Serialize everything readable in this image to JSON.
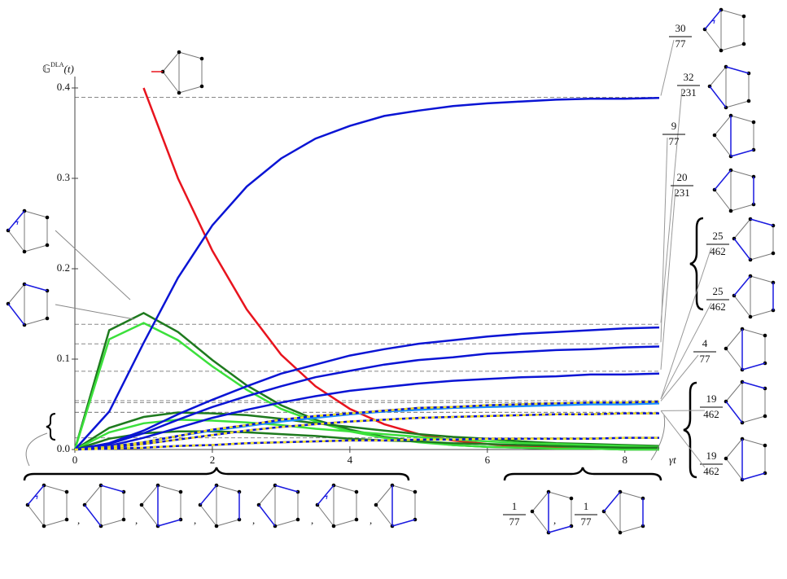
{
  "chart_data": {
    "type": "line",
    "y_label": {
      "base": "𝔾",
      "sup": "DLA",
      "arg": "(t)"
    },
    "x_label": "γt",
    "separator": ",",
    "x": [
      0,
      0.5,
      1,
      1.5,
      2,
      2.5,
      3,
      3.5,
      4,
      4.5,
      5,
      5.5,
      6,
      6.5,
      7,
      7.5,
      8,
      8.5
    ],
    "xlim": [
      0,
      8.5
    ],
    "xticks": [
      0,
      2,
      4,
      6,
      8
    ],
    "ylim": [
      0,
      0.4
    ],
    "yticks": [
      {
        "value": 0,
        "label": "0.0"
      },
      {
        "value": 0.1,
        "label": "0.1"
      },
      {
        "value": 0.2,
        "label": "0.2"
      },
      {
        "value": 0.3,
        "label": "0.3"
      },
      {
        "value": 0.4,
        "label": "0.4"
      }
    ],
    "series": [
      {
        "color": "#e8141e",
        "values": [
          null,
          null,
          0.4,
          0.3,
          0.22,
          0.155,
          0.105,
          0.07,
          0.045,
          0.028,
          0.017,
          0.01,
          0.006,
          0.003,
          0.002,
          0.001,
          0.0005,
          0.0003
        ]
      },
      {
        "color": "#1e7a1e",
        "values": [
          0,
          0.132,
          0.151,
          0.13,
          0.099,
          0.071,
          0.049,
          0.033,
          0.022,
          0.014,
          0.009,
          0.005,
          0.003,
          0.002,
          0.001,
          0.001,
          0,
          0
        ]
      },
      {
        "color": "#3be03b",
        "values": [
          0,
          0.122,
          0.14,
          0.121,
          0.092,
          0.066,
          0.045,
          0.031,
          0.02,
          0.013,
          0.008,
          0.005,
          0.003,
          0.002,
          0.001,
          0.001,
          0,
          0
        ]
      },
      {
        "color": "#1e7a1e",
        "values": [
          0,
          0.024,
          0.036,
          0.041,
          0.04,
          0.038,
          0.034,
          0.029,
          0.025,
          0.021,
          0.017,
          0.014,
          0.012,
          0.009,
          0.007,
          0.006,
          0.005,
          0.004
        ]
      },
      {
        "color": "#3be03b",
        "values": [
          0,
          0.019,
          0.029,
          0.033,
          0.032,
          0.03,
          0.027,
          0.023,
          0.02,
          0.017,
          0.014,
          0.011,
          0.009,
          0.007,
          0.006,
          0.005,
          0.004,
          0.003
        ]
      },
      {
        "color": "#1e7a1e",
        "values": [
          0,
          0.012,
          0.018,
          0.02,
          0.02,
          0.019,
          0.017,
          0.015,
          0.012,
          0.01,
          0.009,
          0.007,
          0.006,
          0.005,
          0.004,
          0.003,
          0.002,
          0.002
        ]
      },
      {
        "color": "#0a14d4",
        "values": [
          0,
          0.042,
          0.118,
          0.19,
          0.248,
          0.291,
          0.322,
          0.344,
          0.358,
          0.369,
          0.375,
          0.38,
          0.383,
          0.385,
          0.387,
          0.388,
          0.388,
          0.389
        ]
      },
      {
        "color": "#0a14d4",
        "values": [
          0,
          0.007,
          0.021,
          0.039,
          0.055,
          0.07,
          0.084,
          0.094,
          0.104,
          0.111,
          0.117,
          0.121,
          0.125,
          0.128,
          0.13,
          0.132,
          0.134,
          0.135
        ]
      },
      {
        "color": "#0a14d4",
        "values": [
          0,
          0.006,
          0.018,
          0.033,
          0.047,
          0.059,
          0.07,
          0.08,
          0.087,
          0.094,
          0.099,
          0.102,
          0.106,
          0.108,
          0.11,
          0.111,
          0.113,
          0.114
        ]
      },
      {
        "color": "#0a14d4",
        "values": [
          0,
          0.004,
          0.013,
          0.024,
          0.035,
          0.044,
          0.052,
          0.059,
          0.065,
          0.069,
          0.073,
          0.076,
          0.078,
          0.08,
          0.081,
          0.083,
          0.083,
          0.084
        ]
      },
      {
        "color": "#1e90ff",
        "values": [
          0,
          0.003,
          0.008,
          0.015,
          0.021,
          0.026,
          0.031,
          0.035,
          0.039,
          0.042,
          0.044,
          0.046,
          0.047,
          0.048,
          0.049,
          0.05,
          0.05,
          0.051
        ]
      },
      {
        "color": "#0a14d4",
        "dash_color": "#f0e020",
        "values": [
          0,
          0.003,
          0.008,
          0.015,
          0.022,
          0.027,
          0.033,
          0.037,
          0.04,
          0.043,
          0.046,
          0.047,
          0.049,
          0.05,
          0.051,
          0.052,
          0.052,
          0.053
        ]
      },
      {
        "color": "#0a14d4",
        "dash_color": "#f0e020",
        "values": [
          0,
          0.002,
          0.006,
          0.011,
          0.016,
          0.021,
          0.025,
          0.028,
          0.031,
          0.033,
          0.035,
          0.036,
          0.037,
          0.038,
          0.039,
          0.039,
          0.04,
          0.04
        ]
      },
      {
        "color": "#0a14d4",
        "dash_color": "#f0e020",
        "values": [
          0,
          0.001,
          0.002,
          0.004,
          0.005,
          0.007,
          0.008,
          0.009,
          0.01,
          0.01,
          0.011,
          0.011,
          0.012,
          0.012,
          0.012,
          0.012,
          0.013,
          0.013
        ]
      }
    ],
    "fractions": [
      {
        "numerator": "30",
        "denominator": "77",
        "value": 0.3896
      },
      {
        "numerator": "32",
        "denominator": "231",
        "value": 0.1385
      },
      {
        "numerator": "9",
        "denominator": "77",
        "value": 0.1169
      },
      {
        "numerator": "20",
        "denominator": "231",
        "value": 0.0866
      },
      {
        "numerator": "25",
        "denominator": "462",
        "value": 0.0541
      },
      {
        "numerator": "25",
        "denominator": "462",
        "value": 0.0541
      },
      {
        "numerator": "4",
        "denominator": "77",
        "value": 0.0519
      },
      {
        "numerator": "19",
        "denominator": "462",
        "value": 0.0411
      },
      {
        "numerator": "19",
        "denominator": "462",
        "value": 0.0411
      }
    ],
    "bottom_fractions": [
      {
        "numerator": "1",
        "denominator": "77",
        "value": 0.013
      },
      {
        "numerator": "1",
        "denominator": "77",
        "value": 0.013
      }
    ]
  }
}
